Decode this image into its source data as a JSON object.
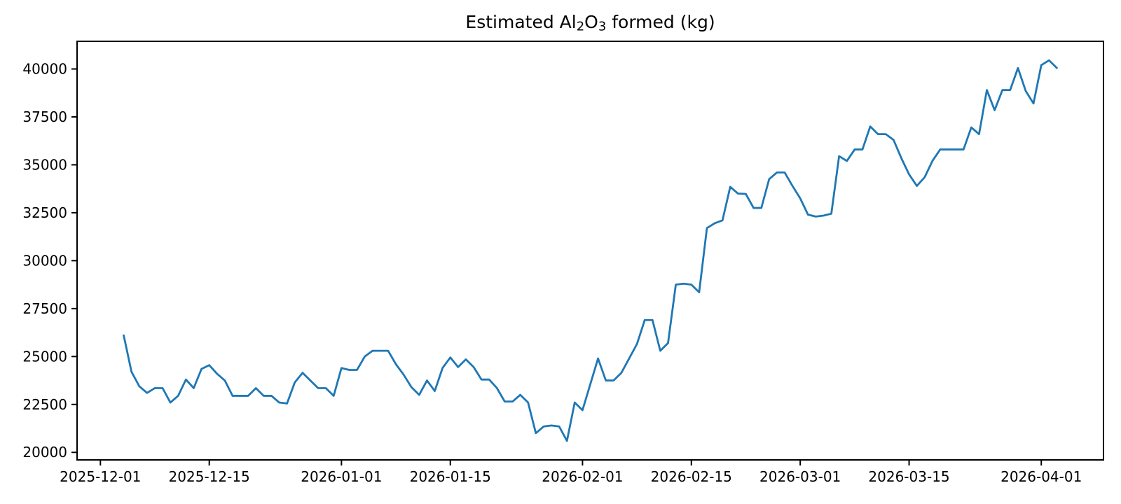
{
  "figure": {
    "background_color": "#ffffff",
    "text_color": "#000000"
  },
  "chart_data": {
    "type": "line",
    "title": {
      "full": "Estimated Al₂O₃ formed (kg)",
      "prefix": "Estimated Al",
      "sub1": "2",
      "mid": "O",
      "sub2": "3",
      "suffix": " formed (kg)"
    },
    "xlabel": "",
    "ylabel": "",
    "legend": null,
    "grid": false,
    "line_color": "#1f77b4",
    "line_width": 2.8,
    "x_axis_epoch": "2025-12-01",
    "start_date": "2025-12-04",
    "frequency": "daily",
    "x_ticks": [
      "2025-12-01",
      "2025-12-15",
      "2026-01-01",
      "2026-01-15",
      "2026-02-01",
      "2026-02-15",
      "2026-03-01",
      "2026-03-15",
      "2026-04-01"
    ],
    "y_ticks": [
      20000,
      22500,
      25000,
      27500,
      30000,
      32500,
      35000,
      37500,
      40000
    ],
    "xlim_days": [
      -3,
      129
    ],
    "ylim": [
      19607,
      41443
    ],
    "values": [
      26100,
      24200,
      23450,
      23100,
      23350,
      23350,
      22600,
      22950,
      23800,
      23350,
      24350,
      24550,
      24100,
      23750,
      22950,
      22950,
      22950,
      23350,
      22950,
      22950,
      22600,
      22550,
      23650,
      24150,
      23750,
      23350,
      23350,
      22950,
      24400,
      24300,
      24300,
      25000,
      25300,
      25300,
      25300,
      24600,
      24050,
      23400,
      23000,
      23750,
      23200,
      24400,
      24950,
      24450,
      24850,
      24450,
      23800,
      23800,
      23350,
      22650,
      22650,
      23000,
      22600,
      21000,
      21350,
      21400,
      21350,
      20600,
      22600,
      22200,
      23550,
      24900,
      23750,
      23750,
      24150,
      24900,
      25650,
      26900,
      26900,
      25300,
      25700,
      28750,
      28800,
      28750,
      28350,
      31700,
      31950,
      32100,
      33850,
      33500,
      33480,
      32750,
      32750,
      34250,
      34600,
      34600,
      33900,
      33250,
      32400,
      32300,
      32350,
      32450,
      35450,
      35200,
      35800,
      35800,
      37000,
      36600,
      36600,
      36300,
      35350,
      34500,
      33900,
      34350,
      35200,
      35800,
      35800,
      35800,
      35800,
      36950,
      36600,
      38900,
      37850,
      38900,
      38900,
      40050,
      38850,
      38200,
      40200,
      40450,
      40050
    ]
  }
}
